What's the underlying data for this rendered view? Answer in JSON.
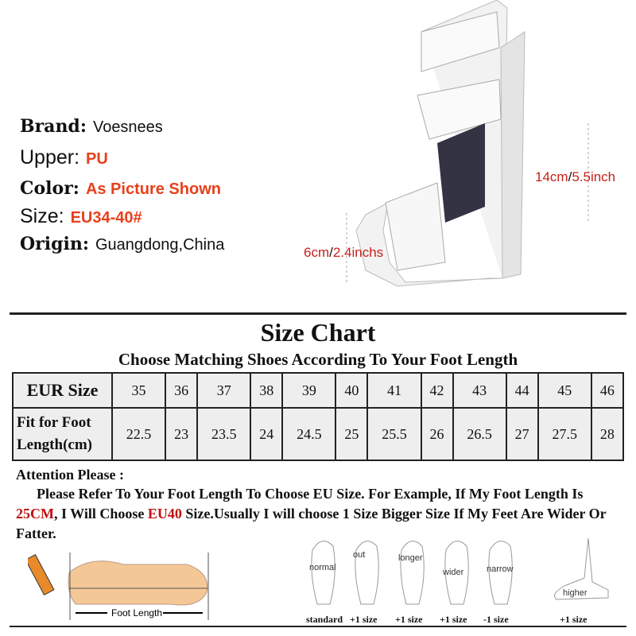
{
  "specs": [
    {
      "label": "Brand:",
      "value": "Voesnees",
      "value_red": false
    },
    {
      "label": "Upper:",
      "value": "PU",
      "value_red": true
    },
    {
      "label": "Color:",
      "value": "As Picture Shown",
      "value_red": true
    },
    {
      "label": "Size:",
      "value": "EU34-40#",
      "value_red": true
    },
    {
      "label": "Origin:",
      "value": "Guangdong,China",
      "value_red": false
    }
  ],
  "dims": {
    "height_cm": "14cm",
    "height_sep": "/",
    "height_in": "5.5inch",
    "platform_cm": "6cm",
    "platform_sep": "/",
    "platform_in": "2.4inchs"
  },
  "size_chart": {
    "title": "Size Chart",
    "subtitle": "Choose Matching Shoes According To Your Foot Length",
    "row1_label": "EUR Size",
    "row2_label": "Fit for Foot Length(cm)",
    "eur": [
      "35",
      "36",
      "37",
      "38",
      "39",
      "40",
      "41",
      "42",
      "43",
      "44",
      "45",
      "46"
    ],
    "length": [
      "22.5",
      "23",
      "23.5",
      "24",
      "24.5",
      "25",
      "25.5",
      "26",
      "26.5",
      "27",
      "27.5",
      "28"
    ]
  },
  "attention": {
    "heading": "Attention Please :",
    "t1": "Please Refer To Your Foot Length To Choose EU Size. For Example, If My Foot Length Is ",
    "h1": "25CM",
    "t2": ", I Will Choose ",
    "h2": "EU40",
    "t3": " Size.Usually I will choose 1 Size Bigger Size If My Feet Are Wider Or Fatter."
  },
  "foot_length_label": "Foot Length",
  "foot_types": [
    {
      "label": "normal",
      "size": "standard"
    },
    {
      "label": "out",
      "size": "+1 size"
    },
    {
      "label": "longer",
      "size": "+1 size"
    },
    {
      "label": "wider",
      "size": "+1 size"
    },
    {
      "label": "narrow",
      "size": "-1 size"
    },
    {
      "label": "higher",
      "size": "+1 size"
    }
  ],
  "colors": {
    "accent_red": "#e8401c",
    "dark_red": "#c01010",
    "cell_bg": "#eeeeee"
  }
}
